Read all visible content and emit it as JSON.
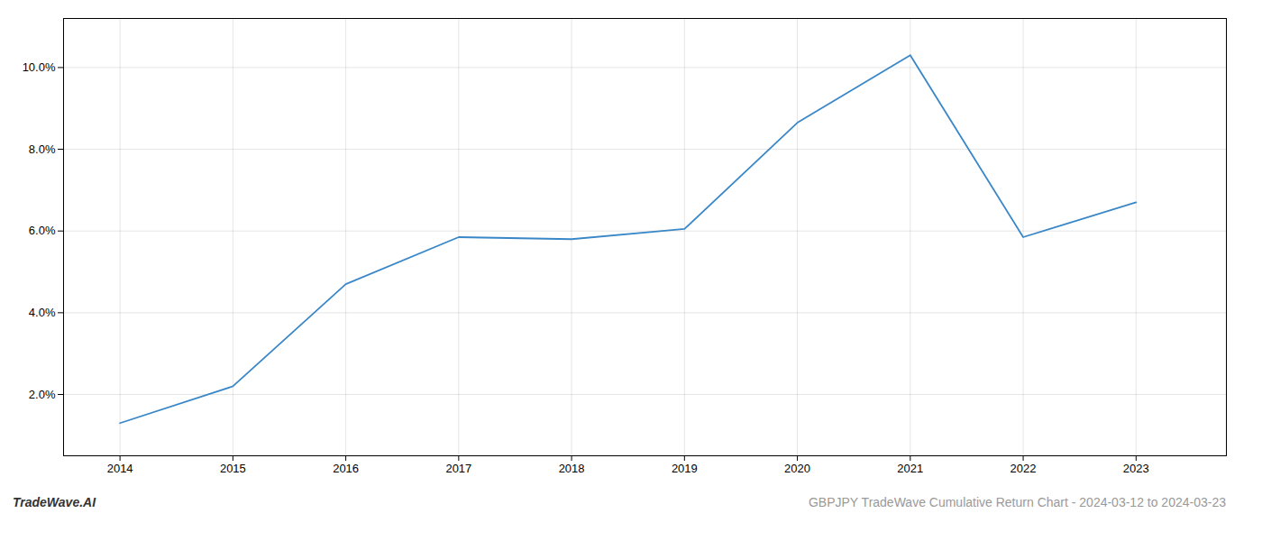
{
  "chart_data": {
    "type": "line",
    "title": "GBPJPY TradeWave Cumulative Return Chart - 2024-03-12 to 2024-03-23",
    "annotations": [
      "TradeWave.AI"
    ],
    "x": [
      2014,
      2015,
      2016,
      2017,
      2018,
      2019,
      2020,
      2021,
      2022,
      2023
    ],
    "values": [
      1.3,
      2.2,
      4.7,
      5.85,
      5.8,
      6.05,
      8.65,
      10.3,
      5.85,
      6.7
    ],
    "color": "#3a87c8",
    "xlim": [
      2013.5,
      2023.8
    ],
    "xticks": [
      2014,
      2015,
      2016,
      2017,
      2018,
      2019,
      2020,
      2021,
      2022,
      2023
    ],
    "ylim": [
      0.5,
      11.2
    ],
    "yticks": [
      {
        "value": 2.0,
        "label": "2.0%"
      },
      {
        "value": 4.0,
        "label": "4.0%"
      },
      {
        "value": 6.0,
        "label": "6.0%"
      },
      {
        "value": 8.0,
        "label": "8.0%"
      },
      {
        "value": 10.0,
        "label": "10.0%"
      }
    ],
    "grid": true
  }
}
